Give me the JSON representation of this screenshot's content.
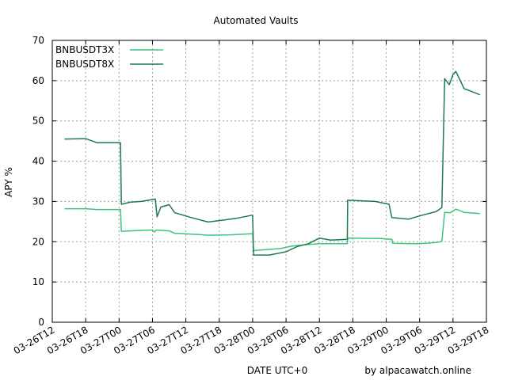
{
  "chart_data": {
    "type": "line",
    "title": "Automated Vaults",
    "xlabel": "DATE UTC+0",
    "ylabel": "APY %",
    "credit": "by alpacawatch.online",
    "ylim": [
      0,
      70
    ],
    "yticks": [
      "0",
      "10",
      "20",
      "30",
      "40",
      "50",
      "60",
      "70"
    ],
    "xlim": [
      "03-26T12",
      "03-29T18"
    ],
    "xticks": [
      "03-26T12",
      "03-26T18",
      "03-27T00",
      "03-27T06",
      "03-27T12",
      "03-27T18",
      "03-28T00",
      "03-28T06",
      "03-28T12",
      "03-28T18",
      "03-29T00",
      "03-29T06",
      "03-29T12",
      "03-29T18"
    ],
    "grid": true,
    "legend_position": "top-left",
    "series": [
      {
        "name": "BNBUSDT3X",
        "color": "#3cc47f",
        "points": [
          [
            "03-26T14:12",
            28.2
          ],
          [
            "03-26T18:00",
            28.2
          ],
          [
            "03-26T20:00",
            28.0
          ],
          [
            "03-27T00:15",
            28.0
          ],
          [
            "03-27T00:25",
            22.6
          ],
          [
            "03-27T04:00",
            22.8
          ],
          [
            "03-27T06:00",
            22.9
          ],
          [
            "03-27T06:20",
            22.4
          ],
          [
            "03-27T06:40",
            22.9
          ],
          [
            "03-27T09:00",
            22.7
          ],
          [
            "03-27T10:00",
            22.1
          ],
          [
            "03-27T14:00",
            21.8
          ],
          [
            "03-27T16:00",
            21.6
          ],
          [
            "03-27T20:00",
            21.7
          ],
          [
            "03-28T00:00",
            22.0
          ],
          [
            "03-28T00:10",
            17.8
          ],
          [
            "03-28T05:00",
            18.3
          ],
          [
            "03-28T07:00",
            18.9
          ],
          [
            "03-28T10:00",
            19.3
          ],
          [
            "03-28T12:00",
            19.5
          ],
          [
            "03-28T17:00",
            19.5
          ],
          [
            "03-28T17:05",
            20.9
          ],
          [
            "03-28T23:00",
            20.8
          ],
          [
            "03-29T01:00",
            20.6
          ],
          [
            "03-29T01:10",
            19.6
          ],
          [
            "03-29T06:00",
            19.5
          ],
          [
            "03-29T09:00",
            19.8
          ],
          [
            "03-29T10:00",
            20.1
          ],
          [
            "03-29T10:30",
            27.3
          ],
          [
            "03-29T11:30",
            27.2
          ],
          [
            "03-29T12:30",
            28.1
          ],
          [
            "03-29T14:00",
            27.3
          ],
          [
            "03-29T16:50",
            27.0
          ]
        ]
      },
      {
        "name": "BNBUSDT8X",
        "color": "#1f7a50",
        "points": [
          [
            "03-26T14:12",
            45.5
          ],
          [
            "03-26T18:00",
            45.6
          ],
          [
            "03-26T20:00",
            44.6
          ],
          [
            "03-27T00:15",
            44.6
          ],
          [
            "03-27T00:25",
            29.3
          ],
          [
            "03-27T02:00",
            29.8
          ],
          [
            "03-27T04:00",
            30.0
          ],
          [
            "03-27T06:30",
            30.6
          ],
          [
            "03-27T06:50",
            26.2
          ],
          [
            "03-27T07:30",
            28.6
          ],
          [
            "03-27T09:00",
            29.2
          ],
          [
            "03-27T10:00",
            27.2
          ],
          [
            "03-27T13:00",
            26.0
          ],
          [
            "03-27T16:00",
            24.9
          ],
          [
            "03-27T19:00",
            25.4
          ],
          [
            "03-27T21:00",
            25.8
          ],
          [
            "03-28T00:00",
            26.6
          ],
          [
            "03-28T00:10",
            16.7
          ],
          [
            "03-28T03:00",
            16.7
          ],
          [
            "03-28T06:00",
            17.5
          ],
          [
            "03-28T08:00",
            18.8
          ],
          [
            "03-28T10:00",
            19.5
          ],
          [
            "03-28T12:00",
            20.9
          ],
          [
            "03-28T14:00",
            20.4
          ],
          [
            "03-28T17:00",
            20.6
          ],
          [
            "03-28T17:05",
            30.3
          ],
          [
            "03-28T22:00",
            30.0
          ],
          [
            "03-29T00:30",
            29.3
          ],
          [
            "03-29T01:00",
            26.0
          ],
          [
            "03-29T04:00",
            25.6
          ],
          [
            "03-29T06:00",
            26.4
          ],
          [
            "03-29T09:00",
            27.5
          ],
          [
            "03-29T10:00",
            28.5
          ],
          [
            "03-29T10:30",
            60.5
          ],
          [
            "03-29T11:20",
            59.0
          ],
          [
            "03-29T12:00",
            61.5
          ],
          [
            "03-29T12:30",
            62.3
          ],
          [
            "03-29T14:00",
            58.0
          ],
          [
            "03-29T15:00",
            57.5
          ],
          [
            "03-29T16:50",
            56.5
          ]
        ]
      }
    ]
  }
}
